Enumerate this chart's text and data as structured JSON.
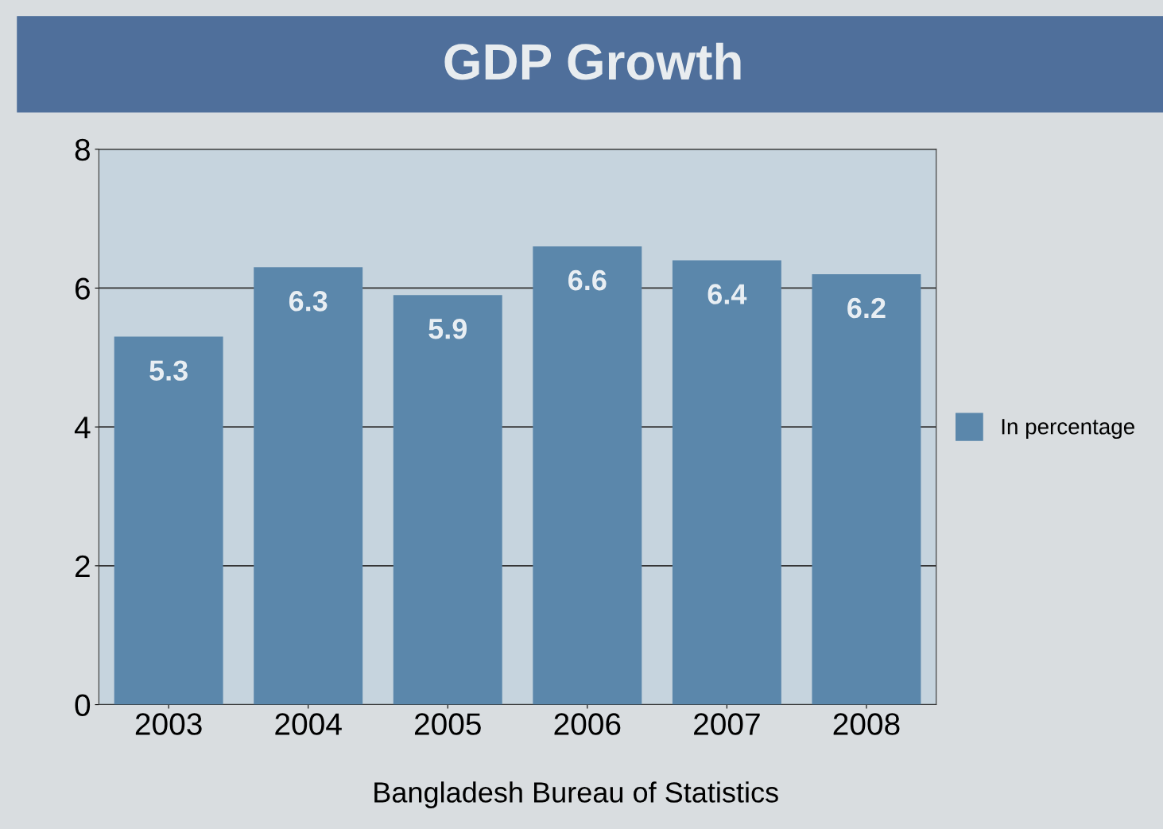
{
  "chart_data": {
    "type": "bar",
    "title": "GDP Growth",
    "categories": [
      "2003",
      "2004",
      "2005",
      "2006",
      "2007",
      "2008"
    ],
    "series": [
      {
        "name": "In percentage",
        "color": "#5b87ab",
        "values": [
          5.3,
          6.3,
          5.9,
          6.6,
          6.4,
          6.2
        ]
      }
    ],
    "ylim": [
      0,
      8
    ],
    "yticks": [
      0,
      2,
      4,
      6,
      8
    ],
    "grid": "y",
    "legend": "right",
    "data_labels": true,
    "annotations": [
      "Bangladesh Bureau of Statistics"
    ]
  }
}
